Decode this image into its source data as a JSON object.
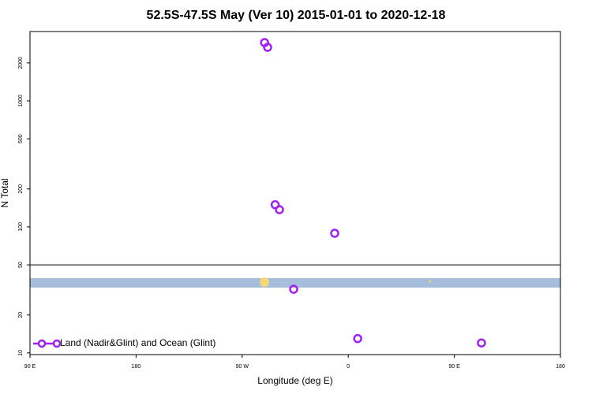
{
  "chart_data": {
    "type": "scatter",
    "title": "52.5S-47.5S May (Ver 10)   2015-01-01 to 2020-12-18",
    "x_label": "Longitude (deg E)",
    "y_label": "N Total",
    "y_log": true,
    "xlim": [
      90,
      540
    ],
    "xticks": [
      {
        "value": 90,
        "label": "90 E"
      },
      {
        "value": 180,
        "label": "180"
      },
      {
        "value": 270,
        "label": "90 W"
      },
      {
        "value": 360,
        "label": "0"
      },
      {
        "value": 450,
        "label": "90 E"
      },
      {
        "value": 540,
        "label": "180"
      }
    ],
    "ylim": [
      9.7,
      3550
    ],
    "yticks": [
      10,
      20,
      50,
      100,
      200,
      500,
      1000,
      2000
    ],
    "hline": 50,
    "legend": "bottom-left",
    "series": [
      {
        "name": "Land (Nadir&Glint) and Ocean (Glint)",
        "color": "#a020f0",
        "x": [
          289,
          291.6,
          298,
          301.6,
          348.5,
          313.7,
          368,
          473
        ],
        "values": [
          2900,
          2660,
          150,
          137,
          89,
          32,
          13,
          12
        ]
      }
    ]
  }
}
